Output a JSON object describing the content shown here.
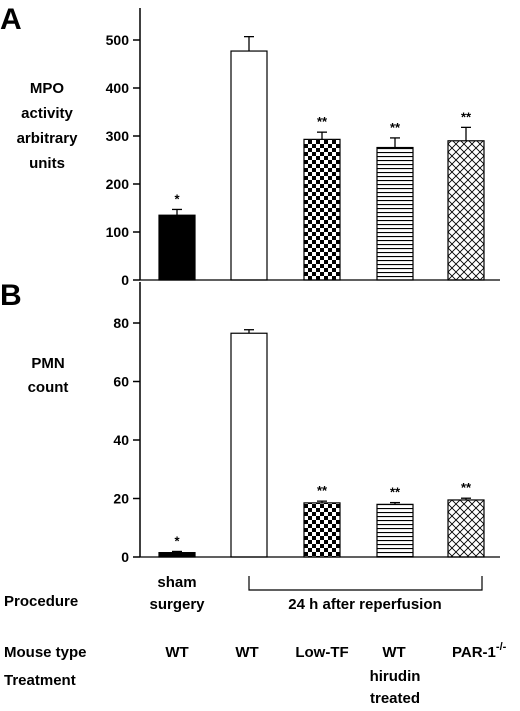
{
  "chart_data": [
    {
      "type": "bar",
      "panel_label": "A",
      "ylabel_lines": [
        "MPO",
        "activity",
        "arbitrary",
        "units"
      ],
      "ylim": [
        0,
        550
      ],
      "yticks": [
        0,
        100,
        200,
        300,
        400,
        500
      ],
      "categories": [
        "sham surgery WT",
        "WT",
        "Low-TF",
        "WT hirudin treated",
        "PAR-1-/-"
      ],
      "values": [
        135,
        477,
        293,
        276,
        290
      ],
      "errors": [
        12,
        30,
        15,
        20,
        28
      ],
      "significance": [
        "*",
        "",
        "**",
        "**",
        "**"
      ],
      "fills": [
        "solid-black",
        "white",
        "checkerboard",
        "horizontal-lines",
        "crosshatch"
      ]
    },
    {
      "type": "bar",
      "panel_label": "B",
      "ylabel_lines": [
        "PMN",
        "count"
      ],
      "ylim": [
        0,
        90
      ],
      "yticks": [
        0,
        20,
        40,
        60,
        80
      ],
      "categories": [
        "sham surgery WT",
        "WT",
        "Low-TF",
        "WT hirudin treated",
        "PAR-1-/-"
      ],
      "values": [
        1.5,
        76.5,
        18.5,
        18,
        19.5
      ],
      "errors": [
        0.4,
        1.2,
        0.6,
        0.6,
        0.6
      ],
      "significance": [
        "*",
        "",
        "**",
        "**",
        "**"
      ],
      "fills": [
        "solid-black",
        "white",
        "checkerboard",
        "horizontal-lines",
        "crosshatch"
      ]
    }
  ],
  "table": {
    "procedure_label": "Procedure",
    "procedure_sham": [
      "sham",
      "surgery"
    ],
    "procedure_reperfusion": "24 h after reperfusion",
    "mouse_type_label": "Mouse type",
    "treatment_label": "Treatment",
    "mouse_types": [
      "WT",
      "WT",
      "Low-TF",
      "WT",
      "PAR-1"
    ],
    "par1_superscript": "-/-",
    "treatment_lines": [
      "hirudin",
      "treated"
    ]
  },
  "colors": {
    "ink": "#000000",
    "background": "#ffffff"
  }
}
